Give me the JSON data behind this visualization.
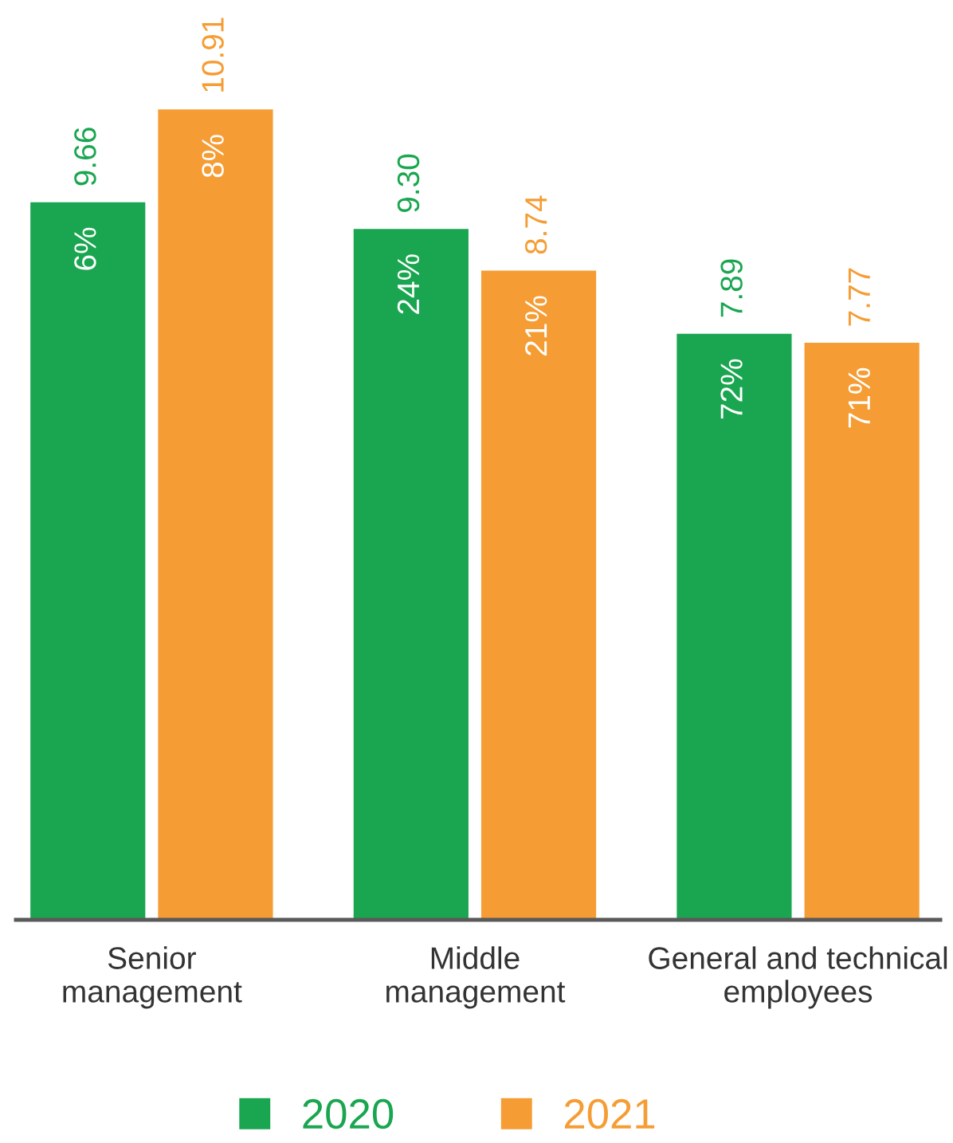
{
  "chart_data": {
    "type": "bar",
    "categories": [
      "Senior\nmanagement",
      "Middle\nmanagement",
      "General and technical\nemployees"
    ],
    "series": [
      {
        "name": "2020",
        "color": "#1aa650",
        "values": [
          9.66,
          9.3,
          7.89
        ],
        "value_labels": [
          "9.66",
          "9.30",
          "7.89"
        ]
      },
      {
        "name": "2021",
        "color": "#f59d34",
        "values": [
          10.91,
          8.74,
          7.77
        ],
        "value_labels": [
          "10.91",
          "8.74",
          "7.77"
        ]
      }
    ],
    "annotations": [
      "6%",
      "24%",
      "72%",
      "8%",
      "21%",
      "71%"
    ],
    "legend": "bottom",
    "tick_labels": "x",
    "grid": false
  }
}
